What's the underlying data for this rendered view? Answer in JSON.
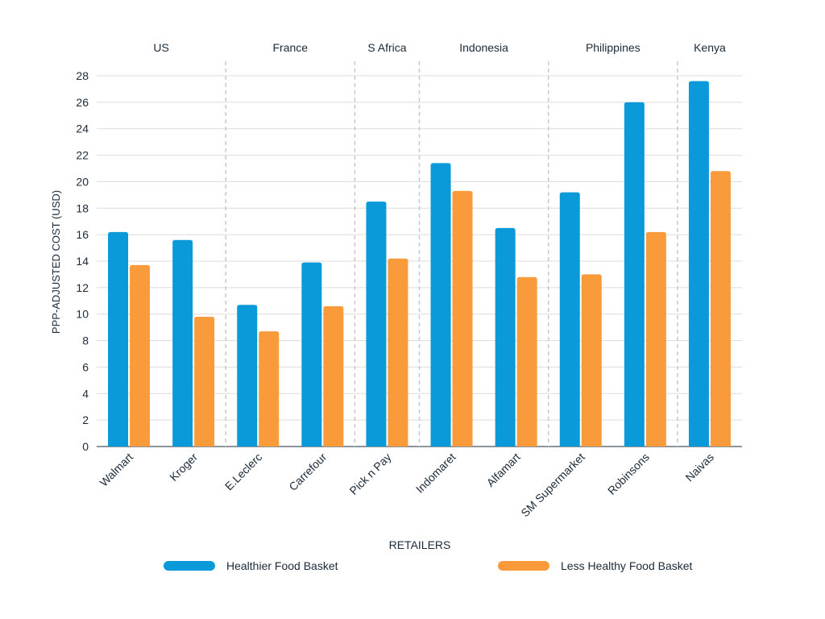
{
  "chart_data": {
    "type": "bar",
    "title": "",
    "xlabel": "RETAILERS",
    "ylabel": "PPP-ADJUSTED COST (USD)",
    "ylim": [
      0,
      28
    ],
    "yticks": [
      0,
      2,
      4,
      6,
      8,
      10,
      12,
      14,
      16,
      18,
      20,
      22,
      24,
      26,
      28
    ],
    "grid": true,
    "legend_position": "bottom",
    "categories": [
      "Walmart",
      "Kroger",
      "E.Leclerc",
      "Carrefour",
      "Pick n Pay",
      "Indomaret",
      "Alfamart",
      "SM Supermarket",
      "Robinsons",
      "Naivas"
    ],
    "groups": [
      {
        "label": "US",
        "categories": [
          "Walmart",
          "Kroger"
        ]
      },
      {
        "label": "France",
        "categories": [
          "E.Leclerc",
          "Carrefour"
        ]
      },
      {
        "label": "S Africa",
        "categories": [
          "Pick n Pay"
        ]
      },
      {
        "label": "Indonesia",
        "categories": [
          "Indomaret",
          "Alfamart"
        ]
      },
      {
        "label": "Philippines",
        "categories": [
          "SM Supermarket",
          "Robinsons"
        ]
      },
      {
        "label": "Kenya",
        "categories": [
          "Naivas"
        ]
      }
    ],
    "series": [
      {
        "name": "Healthier Food Basket",
        "color": "#0a99d9",
        "values": [
          16.2,
          15.6,
          10.7,
          13.9,
          18.5,
          21.4,
          16.5,
          19.2,
          26.0,
          27.6
        ]
      },
      {
        "name": "Less Healthy Food Basket",
        "color": "#f99a3b",
        "values": [
          13.7,
          9.8,
          8.7,
          10.6,
          14.2,
          19.3,
          12.8,
          13.0,
          16.2,
          20.8
        ]
      }
    ]
  }
}
